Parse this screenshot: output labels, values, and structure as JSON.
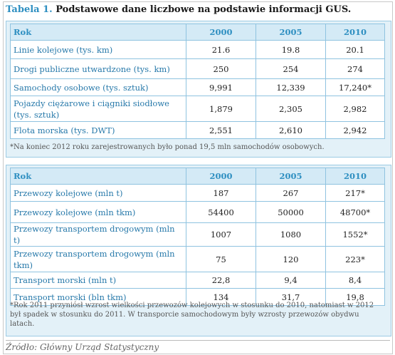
{
  "title": {
    "number": "Tabela 1.",
    "text": "Podstawowe dane liczbowe na podstawie informacji GUS."
  },
  "table1": {
    "headers": [
      "Rok",
      "2000",
      "2005",
      "2010"
    ],
    "rows": [
      {
        "label": "Linie kolejowe (tys. km)",
        "values": [
          "21.6",
          "19.8",
          "20.1"
        ]
      },
      {
        "label": "Drogi publiczne utwardzone (tys. km)",
        "values": [
          "250",
          "254",
          "274"
        ]
      },
      {
        "label": "Samochody osobowe (tys. sztuk)",
        "values": [
          "9,991",
          "12,339",
          "17,240*"
        ]
      },
      {
        "label": "Pojazdy ciężarowe i ciągniki siodłowe (tys. sztuk)",
        "values": [
          "1,879",
          "2,305",
          "2,982"
        ]
      },
      {
        "label": "Flota morska (tys. DWT)",
        "values": [
          "2,551",
          "2,610",
          "2,942"
        ]
      }
    ],
    "note": "*Na koniec 2012 roku zarejestrowanych było ponad 19,5 mln samochodów osobowych."
  },
  "table2": {
    "headers": [
      "Rok",
      "2000",
      "2005",
      "2010"
    ],
    "rows": [
      {
        "label": "Przewozy kolejowe (mln t)",
        "values": [
          "187",
          "267",
          "217*"
        ]
      },
      {
        "label": "Przewozy kolejowe (mln tkm)",
        "values": [
          "54400",
          "50000",
          "48700*"
        ]
      },
      {
        "label": "Przewozy transportem drogowym (mln t)",
        "values": [
          "1007",
          "1080",
          "1552*"
        ]
      },
      {
        "label": "Przewozy transportem drogowym (mln tkm)",
        "values": [
          "75",
          "120",
          "223*"
        ]
      },
      {
        "label": "Transport morski (mln t)",
        "values": [
          "22,8",
          "9,4",
          "8,4"
        ]
      },
      {
        "label": "Transport morski (bln tkm)",
        "values": [
          "134",
          "31,7",
          "19,8"
        ]
      }
    ],
    "note": "*Rok 2011 przyniósł wzrost  wielkości przewozów kolejowych w stosunku do 2010, natomiast w 2012 był spadek w stosunku do 2011. W transporcie samochodowym były wzrosty przewozów obydwu latach."
  },
  "source": "Źródło: Główny Urząd Statystyczny"
}
